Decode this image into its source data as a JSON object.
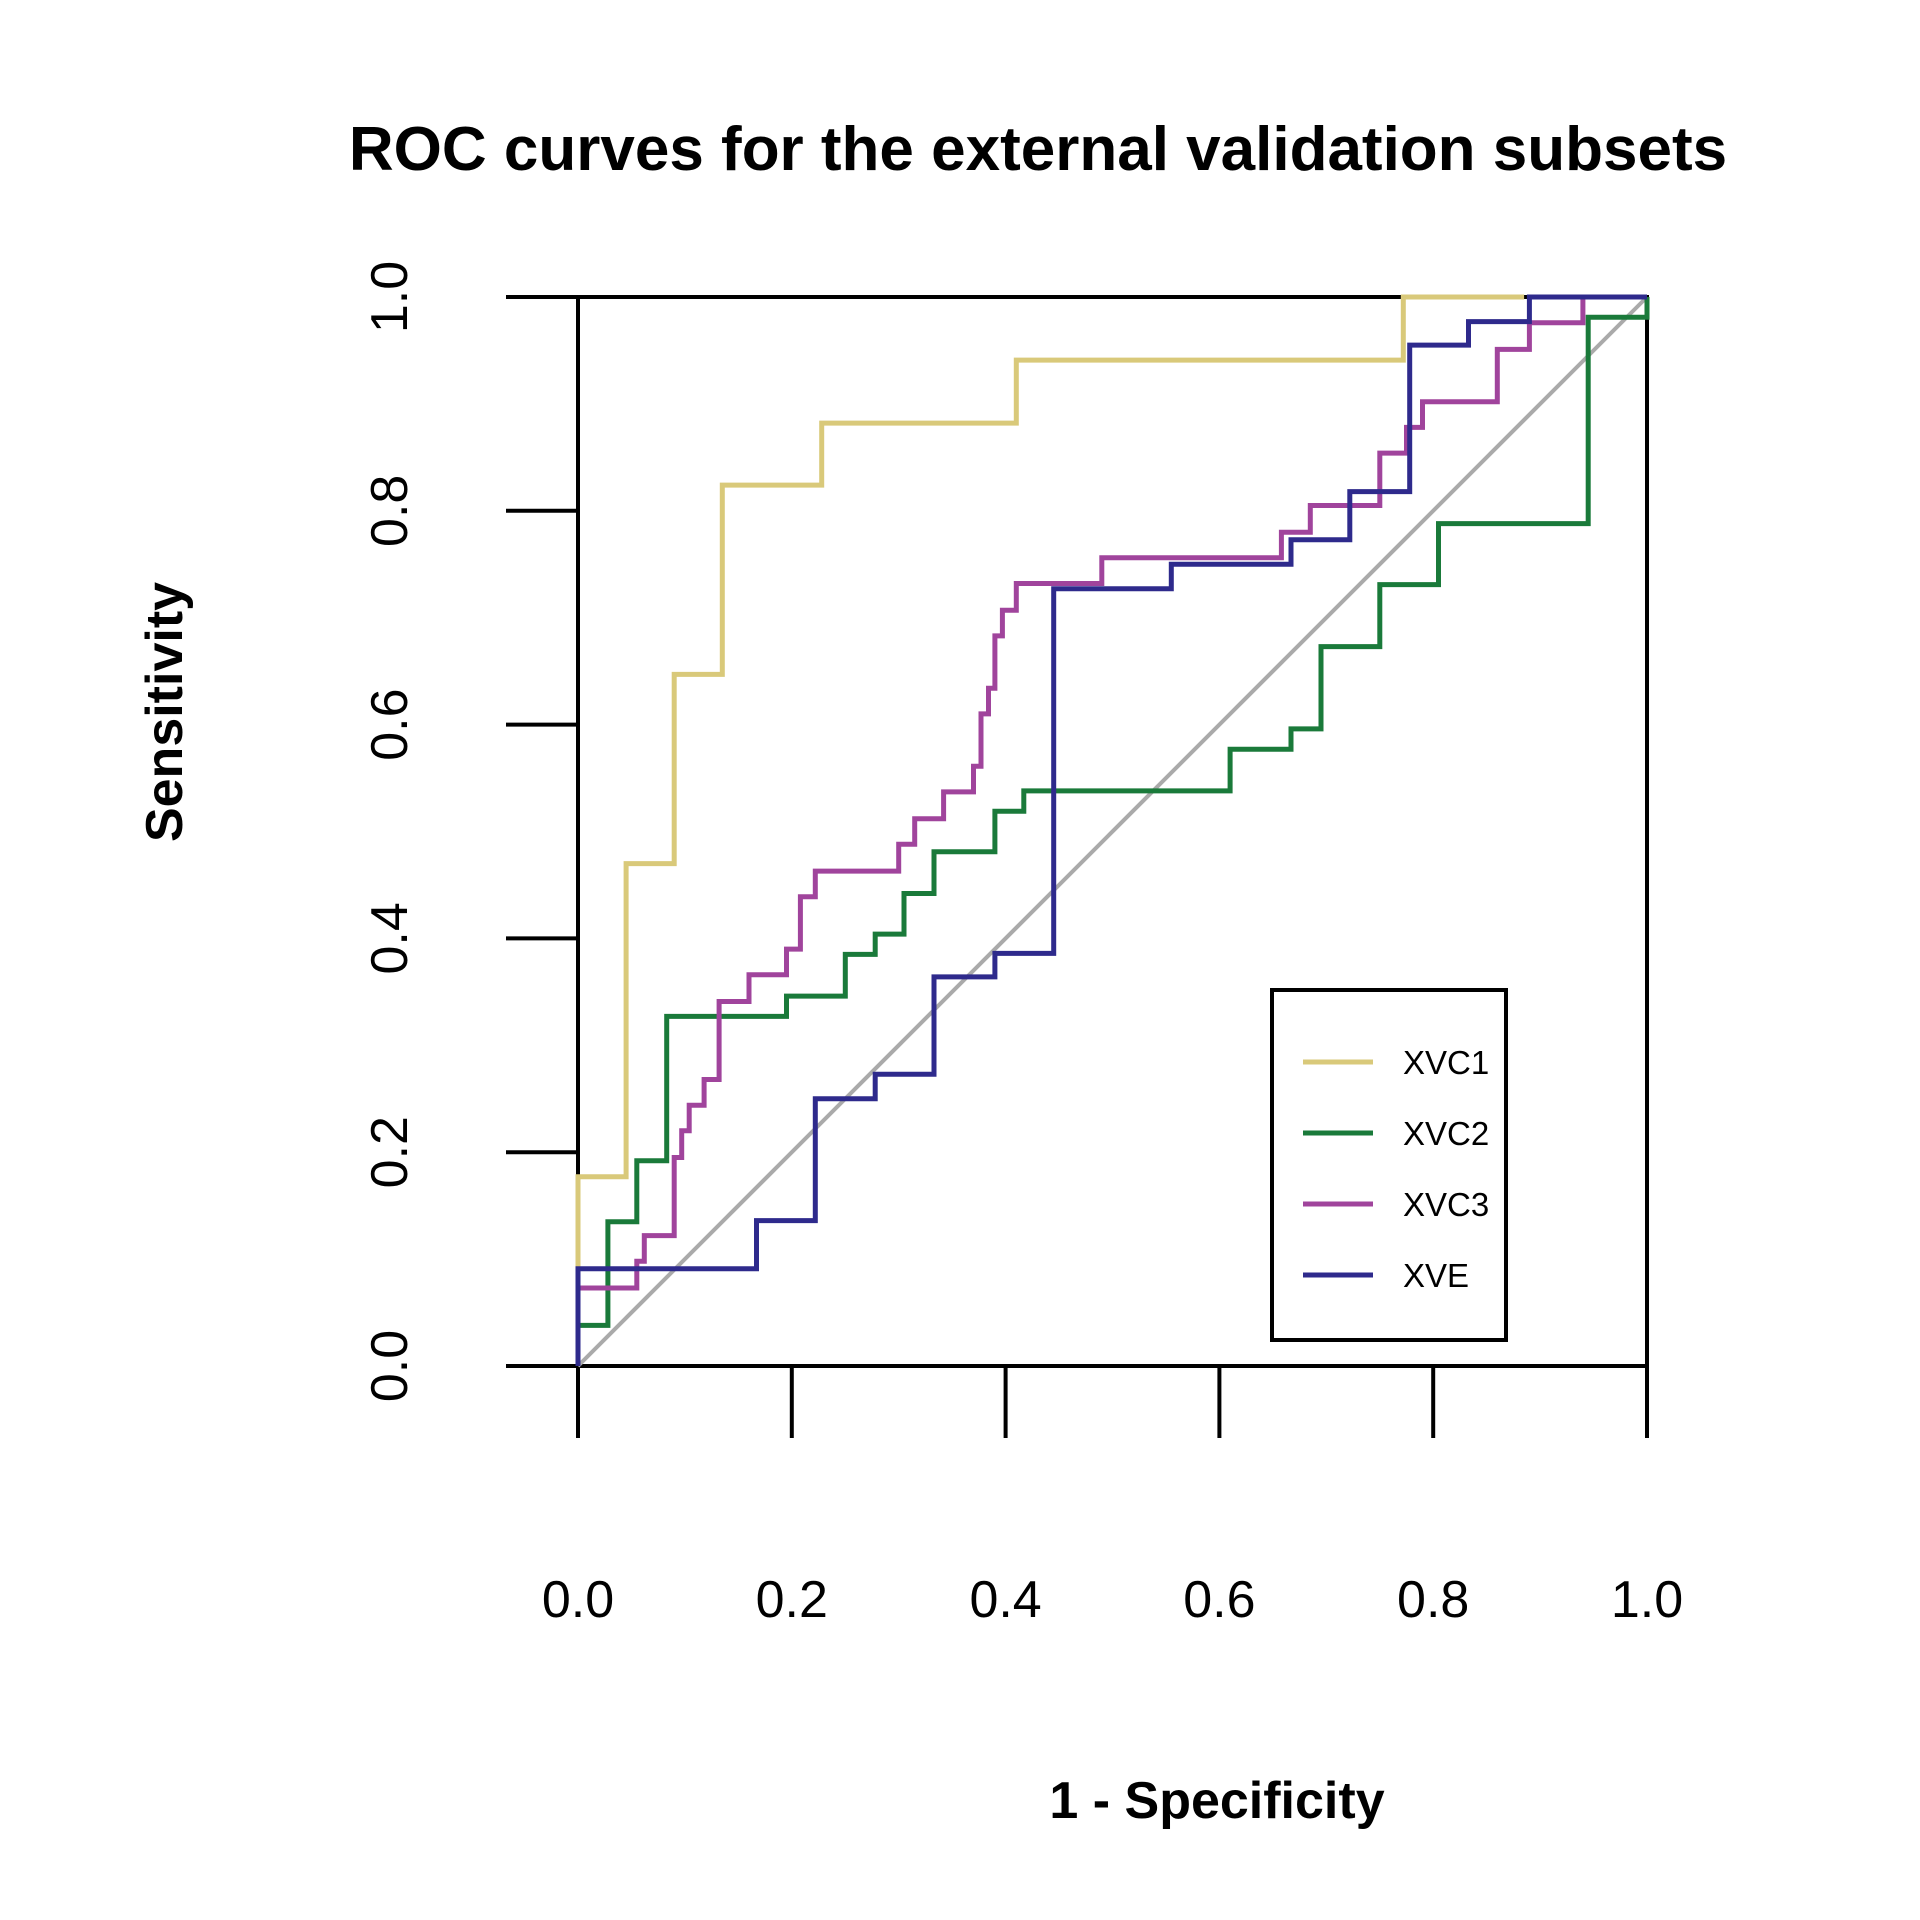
{
  "chart_data": {
    "type": "line",
    "title": "ROC curves for the external validation subsets",
    "xlabel": "1 - Specificity",
    "ylabel": "Sensitivity",
    "xlim": [
      0,
      1
    ],
    "ylim": [
      0,
      1
    ],
    "xticks": [
      "0.0",
      "0.2",
      "0.4",
      "0.6",
      "0.8",
      "1.0"
    ],
    "yticks": [
      "0.0",
      "0.2",
      "0.4",
      "0.6",
      "0.8",
      "1.0"
    ],
    "grid": false,
    "legend_position": "bottom-right",
    "diagonal_color": "#aaaaaa",
    "series": [
      {
        "name": "XVC1",
        "color": "#d9c97a",
        "step_points": [
          [
            0,
            0.09
          ],
          [
            0,
            0.177
          ],
          [
            0.045,
            0.177
          ],
          [
            0.045,
            0.47
          ],
          [
            0.09,
            0.47
          ],
          [
            0.09,
            0.647
          ],
          [
            0.135,
            0.647
          ],
          [
            0.135,
            0.824
          ],
          [
            0.228,
            0.824
          ],
          [
            0.228,
            0.882
          ],
          [
            0.41,
            0.882
          ],
          [
            0.41,
            0.941
          ],
          [
            0.772,
            0.941
          ],
          [
            0.772,
            1.0
          ],
          [
            0.885,
            1.0
          ]
        ]
      },
      {
        "name": "XVC2",
        "color": "#1a7a3a",
        "step_points": [
          [
            0,
            0
          ],
          [
            0,
            0.038
          ],
          [
            0.028,
            0.038
          ],
          [
            0.028,
            0.135
          ],
          [
            0.055,
            0.135
          ],
          [
            0.055,
            0.192
          ],
          [
            0.083,
            0.192
          ],
          [
            0.083,
            0.327
          ],
          [
            0.195,
            0.327
          ],
          [
            0.195,
            0.346
          ],
          [
            0.25,
            0.346
          ],
          [
            0.25,
            0.385
          ],
          [
            0.278,
            0.385
          ],
          [
            0.278,
            0.404
          ],
          [
            0.305,
            0.404
          ],
          [
            0.305,
            0.442
          ],
          [
            0.333,
            0.442
          ],
          [
            0.333,
            0.481
          ],
          [
            0.39,
            0.481
          ],
          [
            0.39,
            0.519
          ],
          [
            0.417,
            0.519
          ],
          [
            0.417,
            0.538
          ],
          [
            0.61,
            0.538
          ],
          [
            0.61,
            0.577
          ],
          [
            0.667,
            0.577
          ],
          [
            0.667,
            0.596
          ],
          [
            0.695,
            0.596
          ],
          [
            0.695,
            0.673
          ],
          [
            0.75,
            0.673
          ],
          [
            0.75,
            0.731
          ],
          [
            0.805,
            0.731
          ],
          [
            0.805,
            0.788
          ],
          [
            0.945,
            0.788
          ],
          [
            0.945,
            0.981
          ],
          [
            1.0,
            0.981
          ],
          [
            1.0,
            1.0
          ]
        ]
      },
      {
        "name": "XVC3",
        "color": "#a0449c",
        "step_points": [
          [
            0,
            0.073
          ],
          [
            0.055,
            0.073
          ],
          [
            0.055,
            0.098
          ],
          [
            0.062,
            0.098
          ],
          [
            0.062,
            0.122
          ],
          [
            0.09,
            0.122
          ],
          [
            0.09,
            0.195
          ],
          [
            0.097,
            0.195
          ],
          [
            0.097,
            0.22
          ],
          [
            0.104,
            0.22
          ],
          [
            0.104,
            0.244
          ],
          [
            0.118,
            0.244
          ],
          [
            0.118,
            0.268
          ],
          [
            0.132,
            0.268
          ],
          [
            0.132,
            0.341
          ],
          [
            0.16,
            0.341
          ],
          [
            0.16,
            0.366
          ],
          [
            0.195,
            0.366
          ],
          [
            0.195,
            0.39
          ],
          [
            0.208,
            0.39
          ],
          [
            0.208,
            0.439
          ],
          [
            0.222,
            0.439
          ],
          [
            0.222,
            0.463
          ],
          [
            0.3,
            0.463
          ],
          [
            0.3,
            0.488
          ],
          [
            0.315,
            0.488
          ],
          [
            0.315,
            0.512
          ],
          [
            0.342,
            0.512
          ],
          [
            0.342,
            0.537
          ],
          [
            0.37,
            0.537
          ],
          [
            0.37,
            0.561
          ],
          [
            0.377,
            0.561
          ],
          [
            0.377,
            0.61
          ],
          [
            0.384,
            0.61
          ],
          [
            0.384,
            0.634
          ],
          [
            0.39,
            0.634
          ],
          [
            0.39,
            0.683
          ],
          [
            0.397,
            0.683
          ],
          [
            0.397,
            0.707
          ],
          [
            0.41,
            0.707
          ],
          [
            0.41,
            0.732
          ],
          [
            0.49,
            0.732
          ],
          [
            0.49,
            0.756
          ],
          [
            0.658,
            0.756
          ],
          [
            0.658,
            0.78
          ],
          [
            0.685,
            0.78
          ],
          [
            0.685,
            0.805
          ],
          [
            0.75,
            0.805
          ],
          [
            0.75,
            0.854
          ],
          [
            0.775,
            0.854
          ],
          [
            0.775,
            0.878
          ],
          [
            0.79,
            0.878
          ],
          [
            0.79,
            0.902
          ],
          [
            0.86,
            0.902
          ],
          [
            0.86,
            0.951
          ],
          [
            0.89,
            0.951
          ],
          [
            0.89,
            0.976
          ],
          [
            0.94,
            0.976
          ],
          [
            0.94,
            1.0
          ],
          [
            1.0,
            1.0
          ]
        ]
      },
      {
        "name": "XVE",
        "color": "#2e2a8c",
        "step_points": [
          [
            0,
            0
          ],
          [
            0,
            0.091
          ],
          [
            0.167,
            0.091
          ],
          [
            0.167,
            0.136
          ],
          [
            0.222,
            0.136
          ],
          [
            0.222,
            0.25
          ],
          [
            0.278,
            0.25
          ],
          [
            0.278,
            0.273
          ],
          [
            0.333,
            0.273
          ],
          [
            0.333,
            0.364
          ],
          [
            0.39,
            0.364
          ],
          [
            0.39,
            0.386
          ],
          [
            0.445,
            0.386
          ],
          [
            0.445,
            0.727
          ],
          [
            0.555,
            0.727
          ],
          [
            0.555,
            0.75
          ],
          [
            0.667,
            0.75
          ],
          [
            0.667,
            0.773
          ],
          [
            0.722,
            0.773
          ],
          [
            0.722,
            0.818
          ],
          [
            0.778,
            0.818
          ],
          [
            0.778,
            0.955
          ],
          [
            0.833,
            0.955
          ],
          [
            0.833,
            0.977
          ],
          [
            0.89,
            0.977
          ],
          [
            0.89,
            1.0
          ],
          [
            1.0,
            1.0
          ]
        ]
      }
    ]
  }
}
